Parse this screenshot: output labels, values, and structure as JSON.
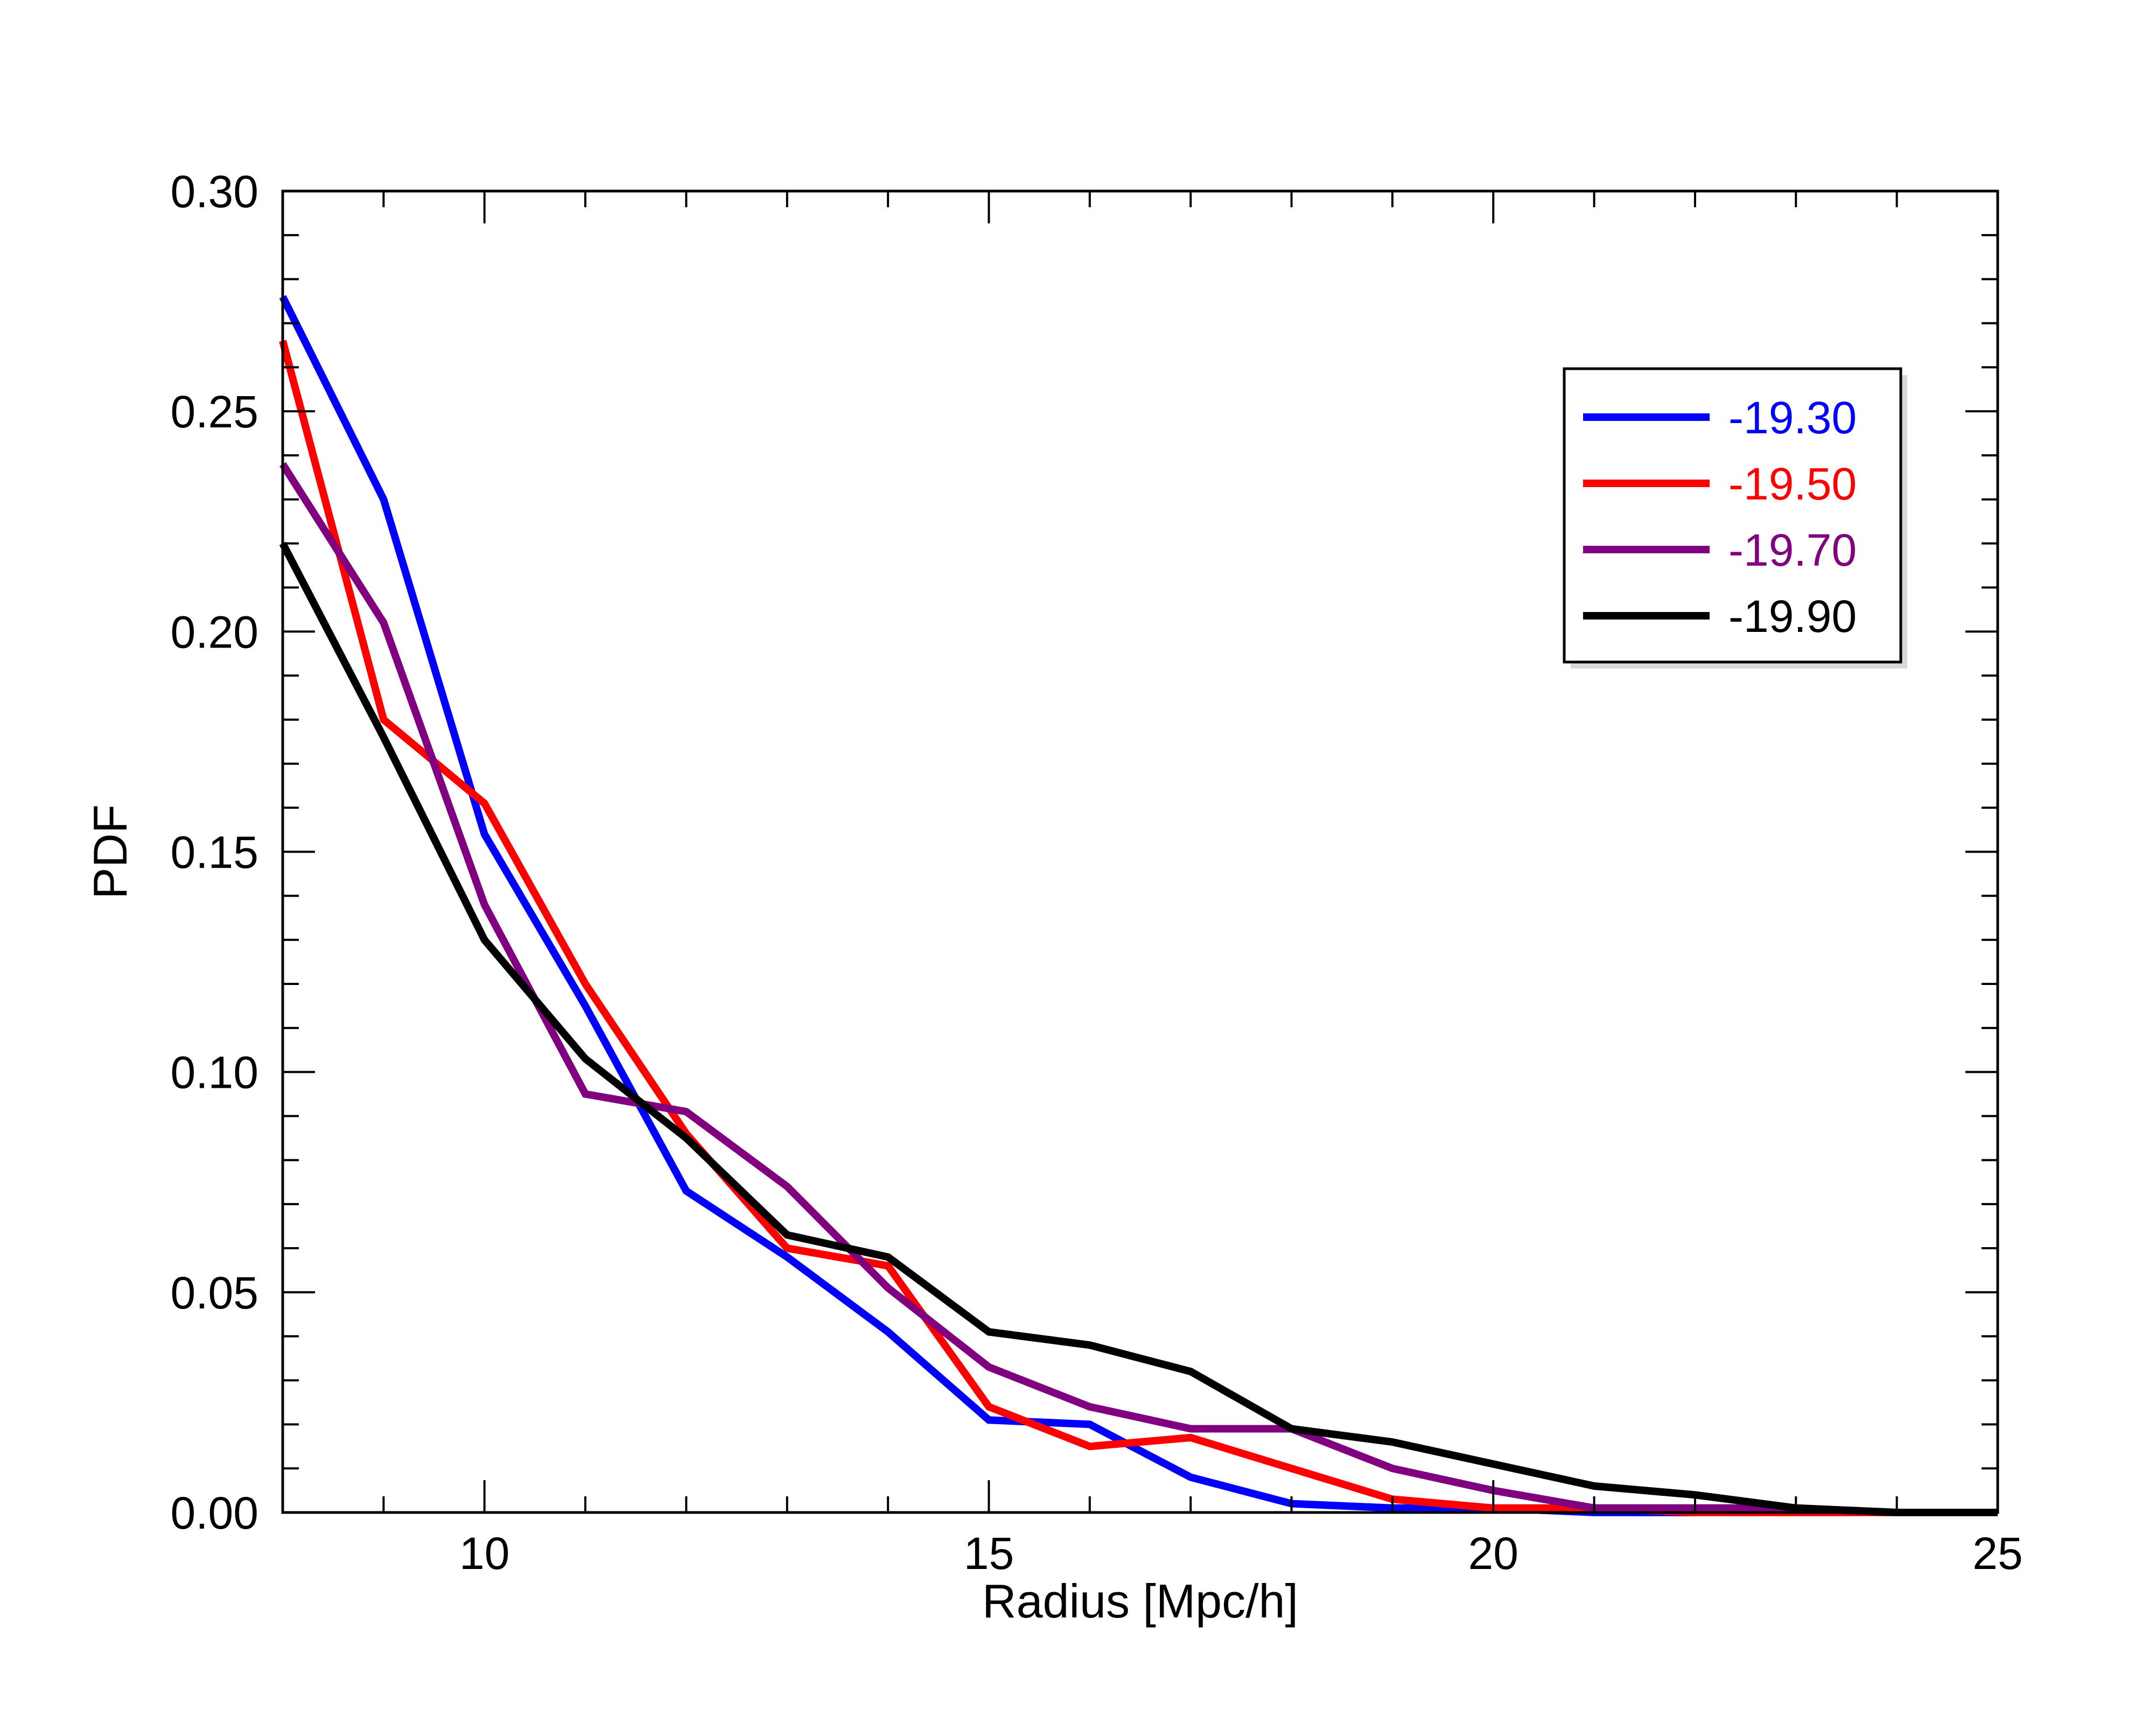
{
  "chart_data": {
    "type": "line",
    "title": "",
    "xlabel": "Radius [Mpc/h]",
    "ylabel": "PDF",
    "xlim": [
      8,
      25
    ],
    "ylim": [
      0,
      0.3
    ],
    "x_ticks": [
      10,
      15,
      20,
      25
    ],
    "x_tick_labels": [
      "10",
      "15",
      "20",
      "25"
    ],
    "x_minor_ticks": [
      9,
      10,
      11,
      12,
      13,
      14,
      15,
      16,
      17,
      18,
      19,
      20,
      21,
      22,
      23,
      24
    ],
    "y_ticks": [
      0,
      0.05,
      0.1,
      0.15,
      0.2,
      0.25,
      0.3
    ],
    "y_tick_labels": [
      "0.00",
      "0.05",
      "0.10",
      "0.15",
      "0.20",
      "0.25",
      "0.30"
    ],
    "y_minor_step": 0.01,
    "grid": false,
    "legend_position": "top-right",
    "x": [
      8,
      9,
      10,
      11,
      12,
      13,
      14,
      15,
      16,
      17,
      18,
      19,
      20,
      21,
      22,
      23,
      24,
      25
    ],
    "series": [
      {
        "name": "-19.30",
        "color": "#0000ff",
        "values": [
          0.276,
          0.23,
          0.154,
          0.115,
          0.073,
          0.058,
          0.041,
          0.021,
          0.02,
          0.008,
          0.002,
          0.001,
          0.001,
          0.0,
          0.0,
          0.0,
          0.0,
          0.0
        ]
      },
      {
        "name": "-19.50",
        "color": "#ff0000",
        "values": [
          0.266,
          0.18,
          0.161,
          0.12,
          0.086,
          0.06,
          0.056,
          0.024,
          0.015,
          0.017,
          0.01,
          0.003,
          0.001,
          0.001,
          0.0,
          0.0,
          0.0,
          0.0
        ]
      },
      {
        "name": "-19.70",
        "color": "#800080",
        "values": [
          0.238,
          0.202,
          0.138,
          0.095,
          0.091,
          0.074,
          0.051,
          0.033,
          0.024,
          0.019,
          0.019,
          0.01,
          0.005,
          0.001,
          0.001,
          0.001,
          0.0,
          0.0
        ]
      },
      {
        "name": "-19.90",
        "color": "#000000",
        "values": [
          0.22,
          0.176,
          0.13,
          0.103,
          0.085,
          0.063,
          0.058,
          0.041,
          0.038,
          0.032,
          0.019,
          0.016,
          0.011,
          0.006,
          0.004,
          0.001,
          0.0,
          0.0
        ]
      }
    ]
  }
}
